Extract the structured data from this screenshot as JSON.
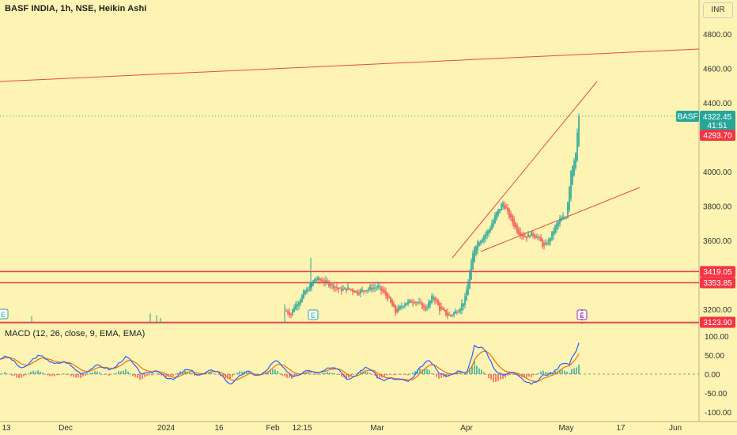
{
  "header": {
    "title": "BASF INDIA, 1h, NSE, Heikin Ashi",
    "currency": "INR"
  },
  "indicator": {
    "title": "MACD (12, 26, close, 9, EMA, EMA)"
  },
  "colors": {
    "up": "#26a69a",
    "down": "#ef5350",
    "macd": "#2962ff",
    "signal": "#ff6d00",
    "hline": "#f23645",
    "trend": "#e84a3f",
    "background": "#fdf3b3"
  },
  "price_axis": {
    "ticks": [
      "4800.00",
      "4600.00",
      "4400.00",
      "4000.00",
      "3800.00",
      "3600.00",
      "3200.00"
    ],
    "tick_values": [
      4800,
      4600,
      4400,
      4000,
      3800,
      3600,
      3200
    ]
  },
  "macd_axis": {
    "ticks": [
      "100.00",
      "50.00",
      "0.00",
      "-50.00",
      "-100.00"
    ],
    "tick_values": [
      100,
      50,
      0,
      -50,
      -100
    ]
  },
  "time_axis": {
    "labels": [
      "13",
      "Dec",
      "2024",
      "16",
      "Feb",
      "12:15",
      "Mar",
      "Apr",
      "May",
      "17",
      "Jun"
    ]
  },
  "price_labels": [
    {
      "text": "BASF",
      "kind": "symbol"
    },
    {
      "text": "4322.45",
      "value": 4322.45,
      "kind": "last",
      "sub": "41:51"
    },
    {
      "text": "4293.70",
      "value": 4293.7,
      "kind": "prev"
    },
    {
      "text": "3419.05",
      "value": 3419.05,
      "kind": "level"
    },
    {
      "text": "3353.85",
      "value": 3353.85,
      "kind": "level"
    },
    {
      "text": "3123.90",
      "value": 3123.9,
      "kind": "level"
    }
  ],
  "markers": [
    {
      "text": "E",
      "color": "#26a69a"
    },
    {
      "text": "E",
      "color": "#26a69a"
    },
    {
      "text": "E",
      "color": "#9c27b0"
    }
  ],
  "chart_data": [
    {
      "type": "candlestick",
      "title": "BASF INDIA, 1h, NSE, Heikin Ashi",
      "ylim": [
        3120,
        4900
      ],
      "horizontal_levels": [
        3419.05,
        3353.85,
        3123.9
      ],
      "last_price": 4322.45,
      "close_series": [
        {
          "x": "Feb",
          "y": 3180
        },
        {
          "x": "12:15",
          "y": 3360
        },
        {
          "x": "Mar",
          "y": 3300
        },
        {
          "x": "Apr",
          "y": 3600
        },
        {
          "x": "Apr",
          "y": 3780
        },
        {
          "x": "May",
          "y": 3700
        },
        {
          "x": "May",
          "y": 4322.45
        }
      ]
    },
    {
      "type": "line",
      "title": "MACD (12, 26, close, 9, EMA, EMA)",
      "ylim": [
        -110,
        135
      ],
      "series": [
        {
          "name": "MACD",
          "values": [
            40,
            20,
            30,
            10,
            0,
            -10,
            5,
            20,
            0,
            15,
            -15,
            -30,
            110,
            30,
            -20,
            120
          ]
        },
        {
          "name": "Signal",
          "values": [
            35,
            25,
            25,
            12,
            5,
            -5,
            0,
            15,
            5,
            10,
            -10,
            -25,
            90,
            40,
            -15,
            95
          ]
        }
      ]
    }
  ]
}
